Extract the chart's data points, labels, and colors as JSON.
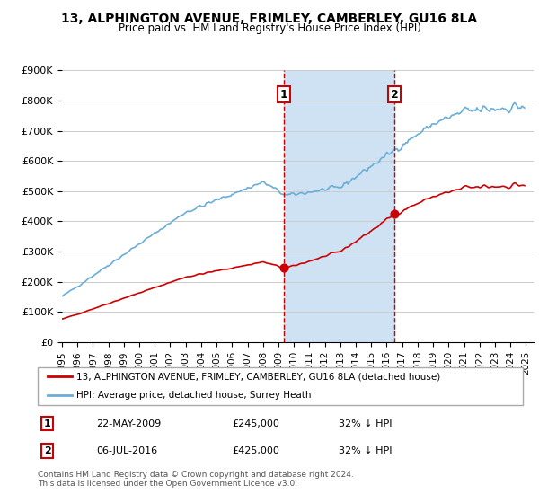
{
  "title": "13, ALPHINGTON AVENUE, FRIMLEY, CAMBERLEY, GU16 8LA",
  "subtitle": "Price paid vs. HM Land Registry's House Price Index (HPI)",
  "ylabel": "",
  "ylim": [
    0,
    900000
  ],
  "yticks": [
    0,
    100000,
    200000,
    300000,
    400000,
    500000,
    600000,
    700000,
    800000,
    900000
  ],
  "ytick_labels": [
    "£0",
    "£100K",
    "£200K",
    "£300K",
    "£400K",
    "£500K",
    "£600K",
    "£700K",
    "£800K",
    "£900K"
  ],
  "sale1_date_idx": 174,
  "sale1_price": 245000,
  "sale1_label": "22-MAY-2009",
  "sale2_date_idx": 258,
  "sale2_price": 425000,
  "sale2_label": "06-JUL-2016",
  "hpi_color": "#6aaed6",
  "property_color": "#cc0000",
  "shade_color": "#cfe2f3",
  "legend_property": "13, ALPHINGTON AVENUE, FRIMLEY, CAMBERLEY, GU16 8LA (detached house)",
  "legend_hpi": "HPI: Average price, detached house, Surrey Heath",
  "footnote": "Contains HM Land Registry data © Crown copyright and database right 2024.\nThis data is licensed under the Open Government Licence v3.0.",
  "table_rows": [
    [
      "1",
      "22-MAY-2009",
      "£245,000",
      "32% ↓ HPI"
    ],
    [
      "2",
      "06-JUL-2016",
      "£425,000",
      "32% ↓ HPI"
    ]
  ]
}
